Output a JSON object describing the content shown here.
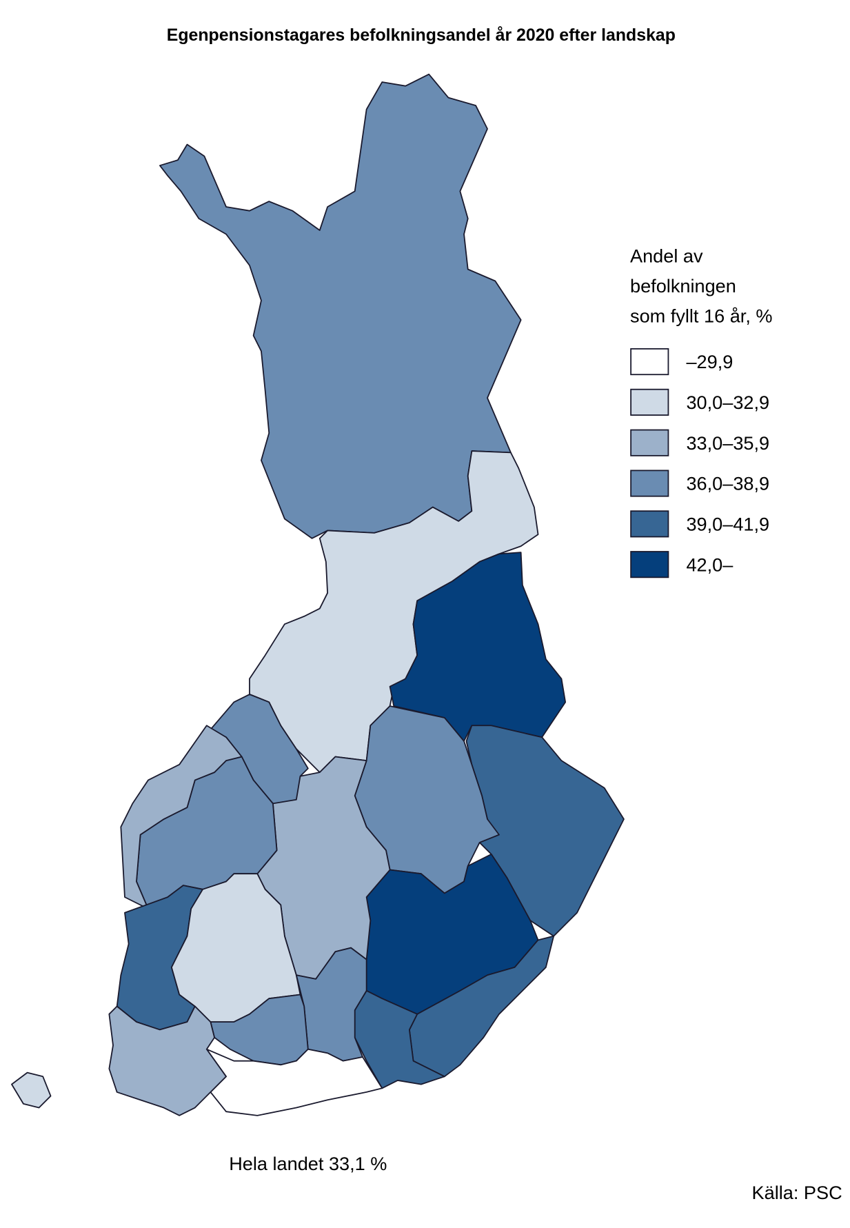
{
  "title": "Egenpensionstagares befolkningsandel år 2020 efter landskap",
  "legend": {
    "title_lines": [
      "Andel av",
      "befolkningen",
      "som fyllt 16 år, %"
    ],
    "items": [
      {
        "label": "–29,9",
        "color": "#ffffff"
      },
      {
        "label": "30,0–32,9",
        "color": "#cfdae6"
      },
      {
        "label": "33,0–35,9",
        "color": "#9cb1ca"
      },
      {
        "label": "36,0–38,9",
        "color": "#6a8cb2"
      },
      {
        "label": "39,0–41,9",
        "color": "#376694"
      },
      {
        "label": "42,0–",
        "color": "#053f7c"
      }
    ]
  },
  "note": "Hela landet 33,1 %",
  "source": "Källa: PSC"
}
